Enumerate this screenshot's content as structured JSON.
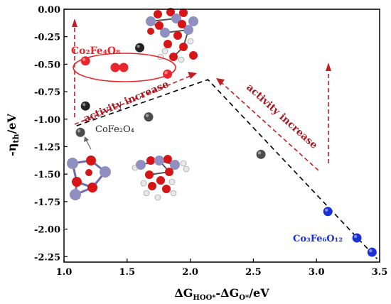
{
  "chart_data": {
    "type": "scatter",
    "xlabel": {
      "main": "ΔG",
      "sub1": "HOO*",
      "mid": "-ΔG",
      "sub2": "O*",
      "tail": "/eV"
    },
    "ylabel": {
      "main": "-η",
      "sub": "th",
      "tail": "/eV"
    },
    "xlim": [
      1.0,
      3.5
    ],
    "ylim": [
      -2.3,
      0.0
    ],
    "xticks": [
      {
        "value": 1.0,
        "label": "1.0"
      },
      {
        "value": 1.5,
        "label": "1.5"
      },
      {
        "value": 2.0,
        "label": "2.0"
      },
      {
        "value": 2.5,
        "label": "2.5"
      },
      {
        "value": 3.0,
        "label": "3.0"
      },
      {
        "value": 3.5,
        "label": "3.5"
      }
    ],
    "yticks": [
      {
        "value": 0.0,
        "label": "0.00"
      },
      {
        "value": -0.25,
        "label": "-0.25"
      },
      {
        "value": -0.5,
        "label": "-0.50"
      },
      {
        "value": -0.75,
        "label": "-0.75"
      },
      {
        "value": -1.0,
        "label": "-1.00"
      },
      {
        "value": -1.25,
        "label": "-1.25"
      },
      {
        "value": -1.5,
        "label": "-1.50"
      },
      {
        "value": -1.75,
        "label": "-1.75"
      },
      {
        "value": -2.0,
        "label": "-2.00"
      },
      {
        "value": -2.25,
        "label": "-2.25"
      }
    ],
    "grid": false,
    "volcano_line": [
      {
        "x": 1.1,
        "y": -1.06
      },
      {
        "x": 2.14,
        "y": -0.64
      },
      {
        "x": 3.48,
        "y": -2.27
      }
    ],
    "series": [
      {
        "color": "#e8262b",
        "points": [
          {
            "x": 1.17,
            "y": -0.47
          },
          {
            "x": 1.82,
            "y": -0.59
          }
        ]
      },
      {
        "color": "#222222",
        "points": [
          {
            "x": 1.6,
            "y": -0.35
          },
          {
            "x": 1.17,
            "y": -0.88
          }
        ]
      },
      {
        "color": "#4d4d4d",
        "points": [
          {
            "x": 1.13,
            "y": -1.12
          },
          {
            "x": 1.67,
            "y": -0.98
          },
          {
            "x": 2.56,
            "y": -1.32
          }
        ]
      },
      {
        "color": "#1a2fd6",
        "points": [
          {
            "x": 3.09,
            "y": -1.84
          },
          {
            "x": 3.32,
            "y": -2.08
          },
          {
            "x": 3.44,
            "y": -2.21
          }
        ]
      }
    ],
    "annotations": [
      {
        "key": "co2fe4o8",
        "text": "Co₂Fe₄O₈",
        "color": "#e8262b"
      },
      {
        "key": "cofe2o4",
        "text": "CoFe₂O₄",
        "color": "#222222"
      },
      {
        "key": "co3fe6o12",
        "text": "Co₃Fe₆O₁₂",
        "color": "#1a2fd6"
      },
      {
        "key": "activity_left",
        "text": "activity increase",
        "color": "#a8181f"
      },
      {
        "key": "activity_right",
        "text": "activity increase",
        "color": "#a8181f"
      }
    ]
  },
  "colors": {
    "red": "#e8262b",
    "darkred": "#a8181f",
    "black": "#222222",
    "grey": "#4d4d4d",
    "blue": "#1a2fd6",
    "atom_metal": "#8f8fc2",
    "atom_oxygen": "#d61616",
    "atom_hydrogen": "#e8e8e8"
  }
}
